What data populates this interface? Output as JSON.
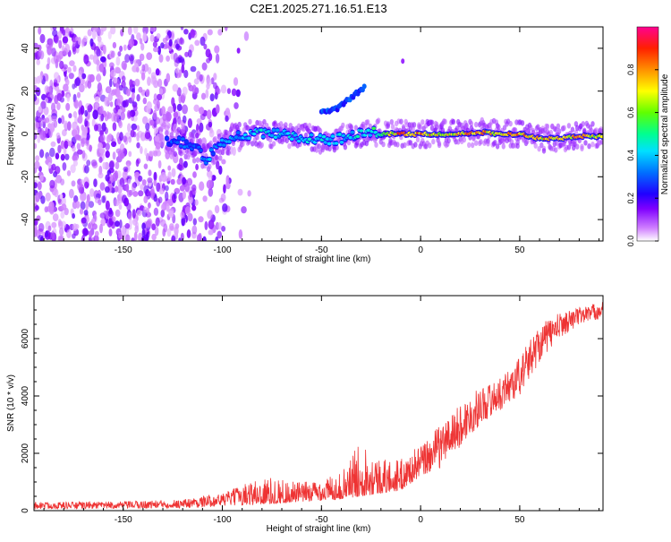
{
  "title": "C2E1.2025.271.16.51.E13",
  "chart_data": [
    {
      "type": "heatmap",
      "xlabel": "Height of straight line (km)",
      "ylabel": "Frequency (Hz)",
      "xlim": [
        -195,
        92
      ],
      "ylim": [
        -50,
        50
      ],
      "xticks": [
        -150,
        -100,
        -50,
        0,
        50
      ],
      "yticks": [
        -40,
        -20,
        0,
        20,
        40
      ],
      "grid": false,
      "colorbar": {
        "label": "Normalized spectral amplitude",
        "range": [
          0,
          1
        ],
        "ticks": [
          "0.0",
          "0.2",
          "0.4",
          "0.6",
          "0.8"
        ],
        "colors": [
          "#ffffff",
          "#b060ff",
          "#4000ff",
          "#0060ff",
          "#00d0ff",
          "#00ff80",
          "#80ff00",
          "#ffff00",
          "#ff8000",
          "#ff0000",
          "#ff00a0"
        ]
      },
      "ridge": {
        "description_points_x": [
          -128,
          -120,
          -112,
          -108,
          -104,
          -95,
          -85,
          -75,
          -65,
          -55,
          -45,
          -35,
          -25,
          -20,
          -10,
          0,
          10,
          20,
          30,
          40,
          50,
          60,
          70,
          80,
          90
        ],
        "description_points_y": [
          -3,
          -4,
          -8,
          -12,
          -7,
          -2,
          0,
          0,
          -1,
          -2,
          -3,
          -1,
          1,
          0,
          0,
          0,
          0,
          0,
          1,
          0,
          0,
          -2,
          -2,
          -1,
          -1
        ],
        "amplitude": [
          0.3,
          0.35,
          0.3,
          0.4,
          0.35,
          0.4,
          0.45,
          0.45,
          0.45,
          0.45,
          0.45,
          0.45,
          0.5,
          0.6,
          0.9,
          0.85,
          0.75,
          0.8,
          0.85,
          0.8,
          0.85,
          0.8,
          0.85,
          0.8,
          0.7
        ]
      },
      "branch": {
        "x": [
          -50,
          -42,
          -35,
          -28
        ],
        "y": [
          10,
          12,
          17,
          22
        ]
      },
      "noise_region_x": [
        -195,
        -110
      ]
    },
    {
      "type": "line",
      "xlabel": "Height of straight line (km)",
      "ylabel": "SNR (10 * v/v)",
      "xlim": [
        -195,
        92
      ],
      "ylim": [
        0,
        7500
      ],
      "xticks": [
        -150,
        -100,
        -50,
        0,
        50
      ],
      "yticks": [
        0,
        2000,
        4000,
        6000
      ],
      "color": "#ee3333",
      "envelope": {
        "x": [
          -195,
          -150,
          -120,
          -100,
          -80,
          -60,
          -40,
          -30,
          -20,
          -10,
          0,
          10,
          20,
          30,
          40,
          50,
          60,
          70,
          80,
          92
        ],
        "low": [
          50,
          60,
          80,
          150,
          200,
          300,
          400,
          500,
          600,
          700,
          1200,
          1500,
          2200,
          3000,
          3500,
          4000,
          5200,
          6000,
          6500,
          6700
        ],
        "high": [
          300,
          320,
          400,
          600,
          1200,
          1000,
          1300,
          2500,
          1800,
          1800,
          2300,
          3000,
          3700,
          4300,
          4600,
          5400,
          6500,
          6900,
          7100,
          7300
        ]
      }
    }
  ]
}
